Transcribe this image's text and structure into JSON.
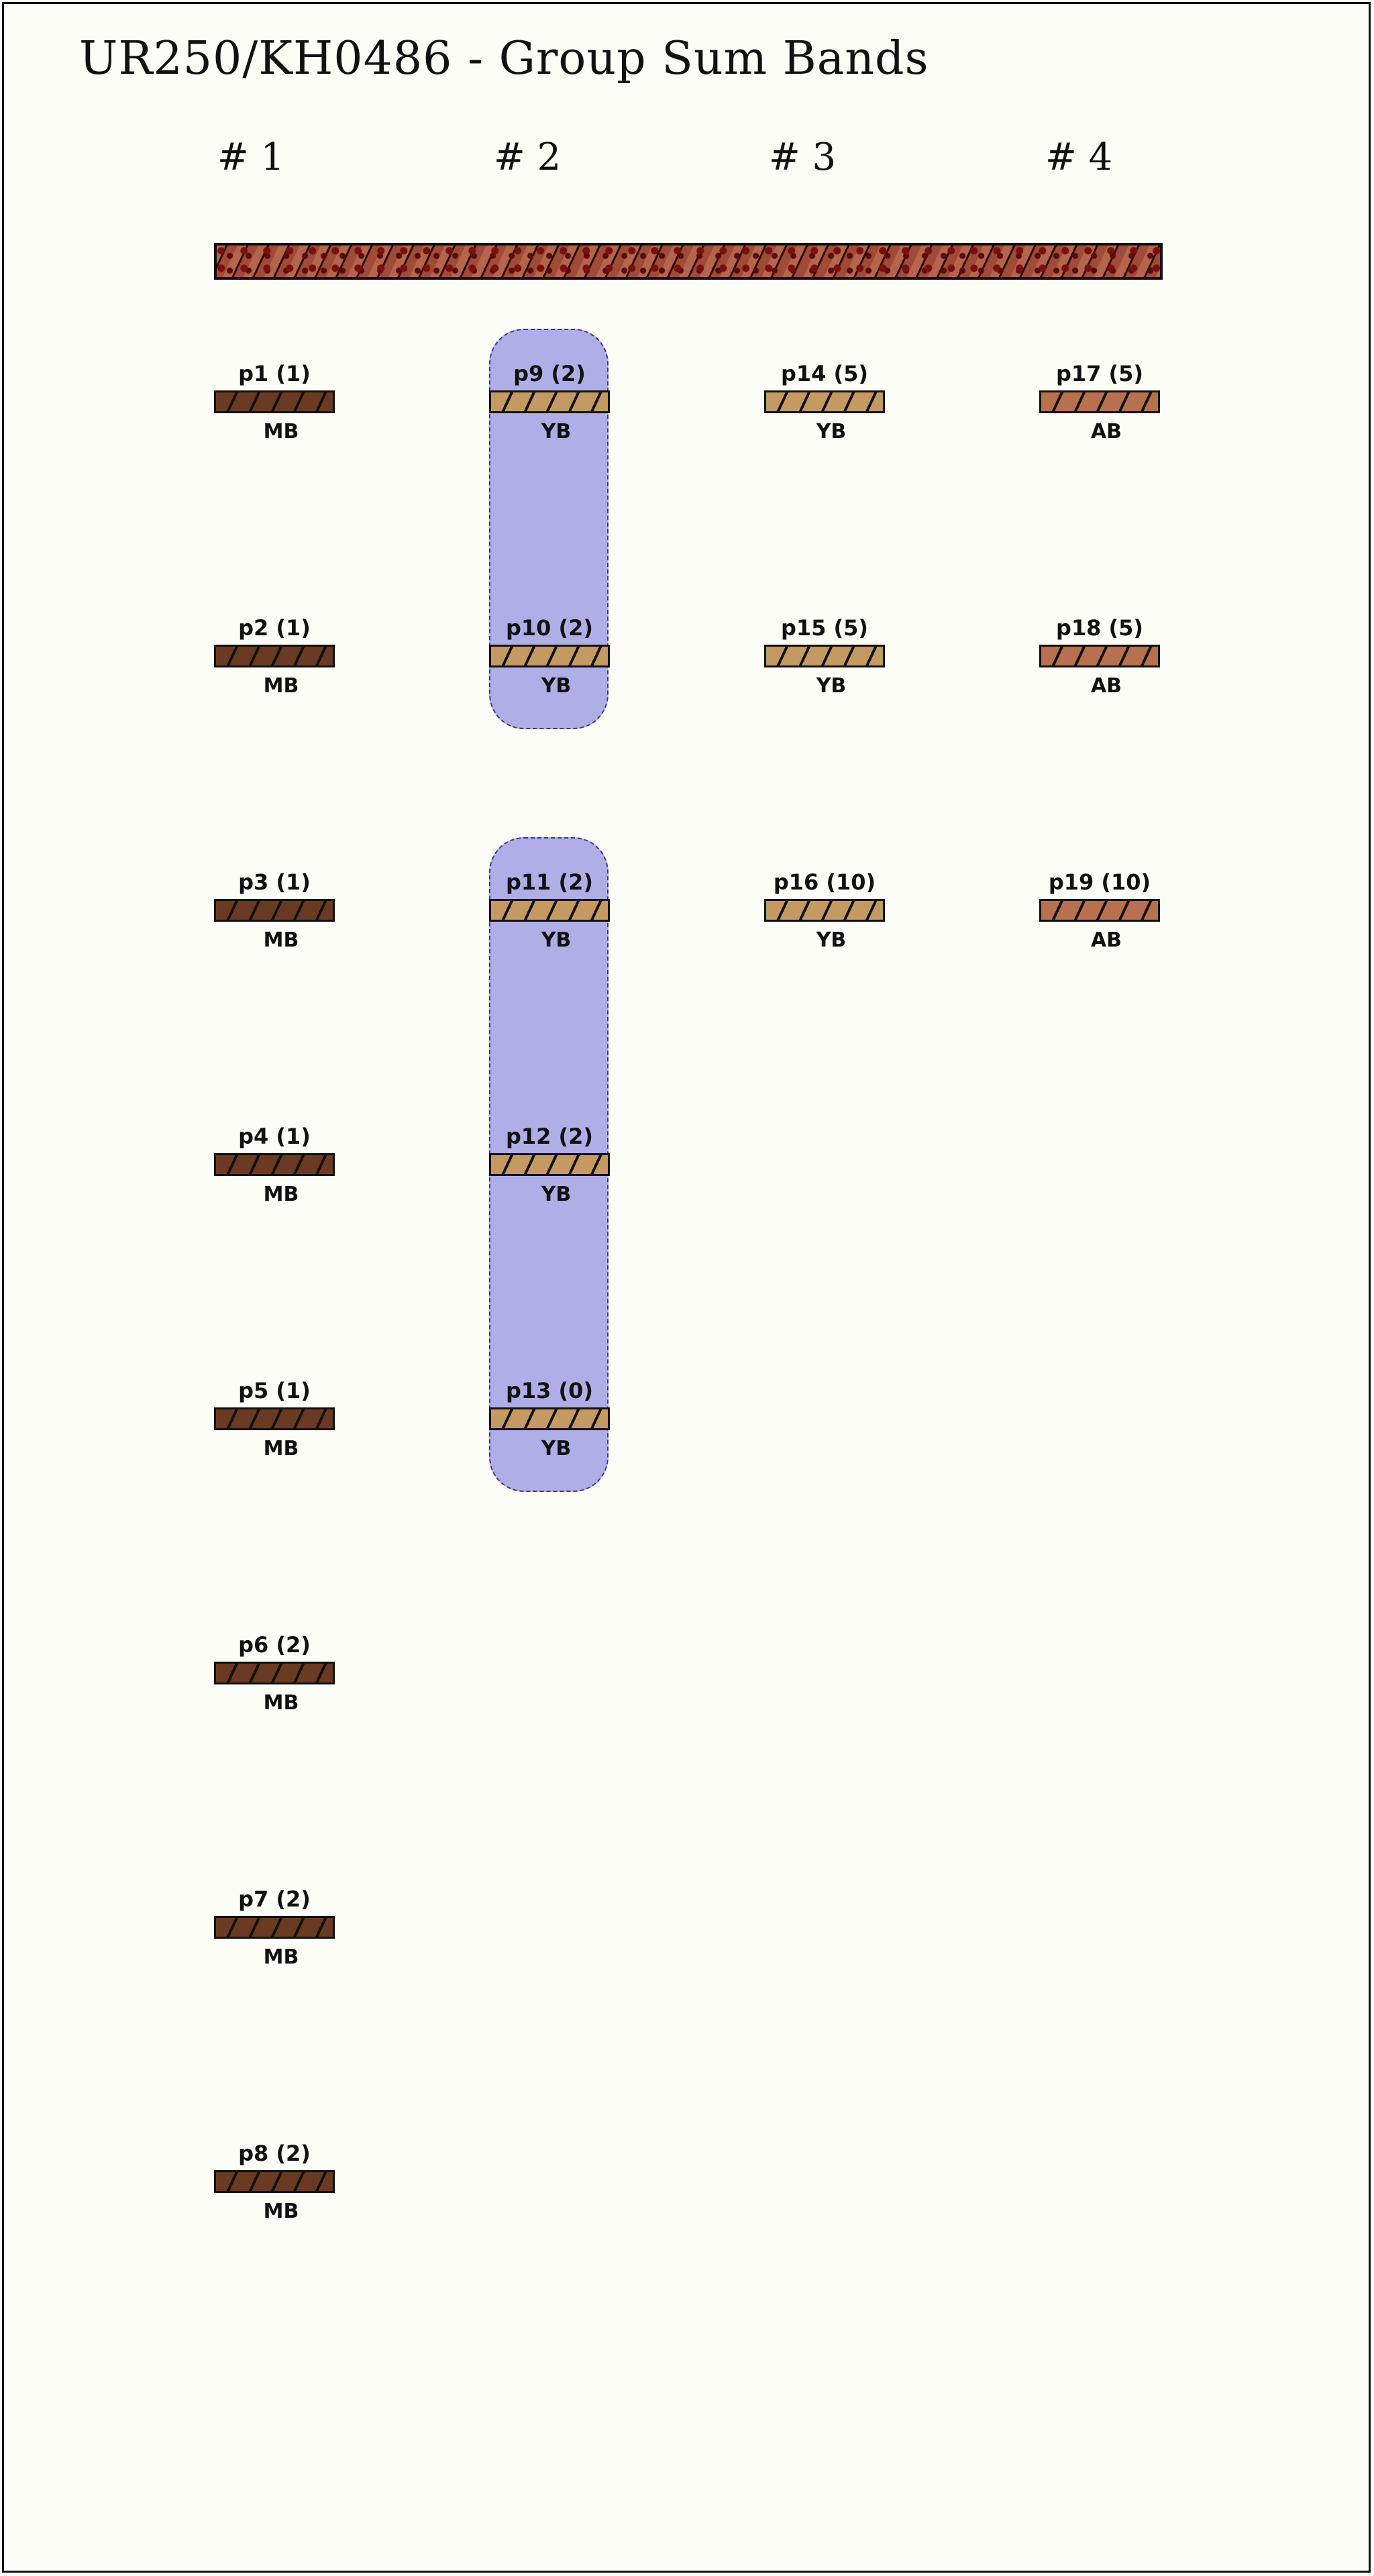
{
  "title": "UR250/KH0486 - Group Sum Bands",
  "columns": [
    "# 1",
    "# 2",
    "# 3",
    "# 4"
  ],
  "colors": {
    "MB": "#6b3a22",
    "YB": "#c49a62",
    "AB": "#b8704e",
    "group": "#b0aee6"
  },
  "groups": [
    {
      "column": 2,
      "from_row": 1,
      "to_row": 2
    },
    {
      "column": 2,
      "from_row": 3,
      "to_row": 5
    }
  ],
  "bands": [
    {
      "label": "p1 (1)",
      "type": "MB",
      "column": 1,
      "row": 1
    },
    {
      "label": "p2 (1)",
      "type": "MB",
      "column": 1,
      "row": 2
    },
    {
      "label": "p3 (1)",
      "type": "MB",
      "column": 1,
      "row": 3
    },
    {
      "label": "p4 (1)",
      "type": "MB",
      "column": 1,
      "row": 4
    },
    {
      "label": "p5 (1)",
      "type": "MB",
      "column": 1,
      "row": 5
    },
    {
      "label": "p6 (2)",
      "type": "MB",
      "column": 1,
      "row": 6
    },
    {
      "label": "p7 (2)",
      "type": "MB",
      "column": 1,
      "row": 7
    },
    {
      "label": "p8 (2)",
      "type": "MB",
      "column": 1,
      "row": 8
    },
    {
      "label": "p9 (2)",
      "type": "YB",
      "column": 2,
      "row": 1
    },
    {
      "label": "p10 (2)",
      "type": "YB",
      "column": 2,
      "row": 2
    },
    {
      "label": "p11 (2)",
      "type": "YB",
      "column": 2,
      "row": 3
    },
    {
      "label": "p12 (2)",
      "type": "YB",
      "column": 2,
      "row": 4
    },
    {
      "label": "p13 (0)",
      "type": "YB",
      "column": 2,
      "row": 5
    },
    {
      "label": "p14 (5)",
      "type": "YB",
      "column": 3,
      "row": 1
    },
    {
      "label": "p15 (5)",
      "type": "YB",
      "column": 3,
      "row": 2
    },
    {
      "label": "p16 (10)",
      "type": "YB",
      "column": 3,
      "row": 3
    },
    {
      "label": "p17 (5)",
      "type": "AB",
      "column": 4,
      "row": 1
    },
    {
      "label": "p18 (5)",
      "type": "AB",
      "column": 4,
      "row": 2
    },
    {
      "label": "p19 (10)",
      "type": "AB",
      "column": 4,
      "row": 3
    }
  ]
}
